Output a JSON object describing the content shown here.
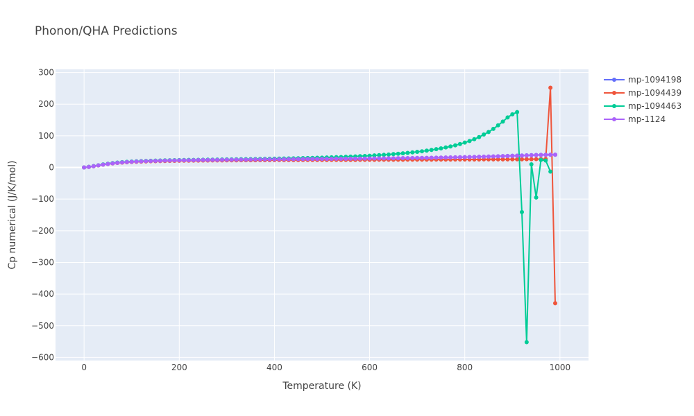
{
  "chart_data": {
    "type": "line",
    "title": "Phonon/QHA Predictions",
    "xlabel": "Temperature (K)",
    "ylabel": "Cp numerical (J/K/mol)",
    "xlim": [
      -60,
      1060
    ],
    "ylim": [
      -610,
      310
    ],
    "xticks": [
      0,
      200,
      400,
      600,
      800,
      1000
    ],
    "yticks": [
      -600,
      -500,
      -400,
      -300,
      -200,
      -100,
      0,
      100,
      200,
      300
    ],
    "xtick_labels": [
      "0",
      "200",
      "400",
      "600",
      "800",
      "1000"
    ],
    "ytick_labels": [
      "−600",
      "−500",
      "−400",
      "−300",
      "−200",
      "−100",
      "0",
      "100",
      "200",
      "300"
    ],
    "grid": true,
    "legend_position": "top-right",
    "x_start": 0,
    "x_step": 10,
    "series": [
      {
        "name": "mp-1094198",
        "color": "#636efa",
        "values": [
          0,
          1.8,
          4.1,
          6.6,
          9.1,
          11.3,
          13.2,
          14.7,
          16.0,
          17.1,
          18.0,
          18.8,
          19.4,
          20.0,
          20.5,
          20.9,
          21.3,
          21.6,
          21.9,
          22.2,
          22.4,
          22.6,
          22.8,
          23.0,
          23.2,
          23.3,
          23.5,
          23.6,
          23.7,
          23.8,
          23.9,
          24.0,
          24.1,
          24.2,
          24.3,
          24.4,
          24.5,
          24.6,
          24.7,
          24.8,
          24.9,
          25.0,
          25.1,
          25.2,
          25.3,
          25.4,
          25.5,
          25.6,
          25.8,
          25.9,
          26.0,
          26.1,
          26.3,
          26.4,
          26.5,
          26.7,
          26.8,
          27.0,
          27.1,
          27.3,
          27.5,
          27.6,
          27.8,
          28.0,
          28.2,
          28.4,
          28.6,
          28.8,
          29.0,
          29.3,
          29.5,
          29.8,
          30.0,
          30.3,
          30.6,
          30.9,
          31.2,
          31.5,
          31.8,
          32.2,
          32.5,
          32.9,
          33.3,
          33.7,
          34.1,
          34.5,
          34.9,
          35.4,
          35.9,
          36.4,
          36.9,
          37.4,
          37.9,
          38.4,
          38.9,
          39.4,
          39.8,
          40.1,
          40.3,
          40.4
        ]
      },
      {
        "name": "mp-1094439",
        "color": "#ef553b",
        "values": [
          0,
          1.7,
          3.9,
          6.3,
          8.7,
          10.9,
          12.7,
          14.2,
          15.4,
          16.4,
          17.2,
          17.9,
          18.5,
          19.0,
          19.4,
          19.8,
          20.1,
          20.4,
          20.7,
          20.9,
          21.1,
          21.3,
          21.5,
          21.6,
          21.8,
          21.9,
          22.0,
          22.1,
          22.2,
          22.3,
          22.4,
          22.5,
          22.6,
          22.7,
          22.8,
          22.8,
          22.9,
          23.0,
          23.0,
          23.1,
          23.2,
          23.2,
          23.3,
          23.3,
          23.4,
          23.4,
          23.5,
          23.5,
          23.6,
          23.6,
          23.7,
          23.7,
          23.8,
          23.8,
          23.9,
          23.9,
          24.0,
          24.0,
          24.1,
          24.1,
          24.2,
          24.2,
          24.3,
          24.3,
          24.4,
          24.4,
          24.5,
          24.5,
          24.6,
          24.6,
          24.7,
          24.7,
          24.8,
          24.8,
          24.9,
          24.9,
          25.0,
          25.0,
          25.1,
          25.1,
          25.2,
          25.2,
          25.3,
          25.3,
          25.4,
          25.4,
          25.5,
          25.5,
          25.6,
          25.6,
          25.7,
          25.8,
          25.9,
          26.0,
          26.1,
          26.2,
          26.3,
          26.5,
          252,
          -429
        ]
      },
      {
        "name": "mp-1094463",
        "color": "#00cc96",
        "values": [
          0,
          1.9,
          4.3,
          6.9,
          9.5,
          11.8,
          13.8,
          15.4,
          16.7,
          17.8,
          18.7,
          19.5,
          20.1,
          20.7,
          21.2,
          21.6,
          22.0,
          22.4,
          22.7,
          23.0,
          23.3,
          23.5,
          23.8,
          24.0,
          24.2,
          24.4,
          24.6,
          24.8,
          25.0,
          25.2,
          25.4,
          25.6,
          25.8,
          26.0,
          26.2,
          26.4,
          26.6,
          26.9,
          27.1,
          27.4,
          27.6,
          27.9,
          28.2,
          28.5,
          28.8,
          29.1,
          29.5,
          29.8,
          30.2,
          30.6,
          31.0,
          31.5,
          32.0,
          32.5,
          33.0,
          33.6,
          34.2,
          34.9,
          35.6,
          36.3,
          37.1,
          38.0,
          38.9,
          39.9,
          40.9,
          42.1,
          43.3,
          44.6,
          46.0,
          47.6,
          49.3,
          51.1,
          53.1,
          55.3,
          57.7,
          60.3,
          63.2,
          66.4,
          70.0,
          74.0,
          78.5,
          83.6,
          89.4,
          96.0,
          104,
          112,
          122,
          133,
          145,
          158,
          168,
          175,
          -141,
          -552,
          10,
          -95,
          24,
          22,
          -13
        ]
      },
      {
        "name": "mp-1124",
        "color": "#ab63fa",
        "values": [
          0,
          1.8,
          4.0,
          6.5,
          8.9,
          11.1,
          13.0,
          14.5,
          15.8,
          16.9,
          17.8,
          18.6,
          19.3,
          19.9,
          20.4,
          20.8,
          21.2,
          21.6,
          21.9,
          22.2,
          22.5,
          22.7,
          22.9,
          23.1,
          23.3,
          23.5,
          23.7,
          23.8,
          24.0,
          24.1,
          24.3,
          24.4,
          24.6,
          24.7,
          24.8,
          25.0,
          25.1,
          25.2,
          25.4,
          25.5,
          25.6,
          25.7,
          25.9,
          26.0,
          26.1,
          26.2,
          26.4,
          26.5,
          26.6,
          26.7,
          26.9,
          27.0,
          27.1,
          27.3,
          27.4,
          27.5,
          27.7,
          27.8,
          28.0,
          28.1,
          28.3,
          28.4,
          28.6,
          28.8,
          28.9,
          29.1,
          29.3,
          29.5,
          29.7,
          29.9,
          30.1,
          30.3,
          30.5,
          30.8,
          31.0,
          31.3,
          31.5,
          31.8,
          32.1,
          32.4,
          32.7,
          33.0,
          33.3,
          33.7,
          34.0,
          34.4,
          34.8,
          35.2,
          35.6,
          36.0,
          36.5,
          36.9,
          37.4,
          37.9,
          38.4,
          38.9,
          39.4,
          39.8,
          40.1,
          40.3
        ]
      }
    ]
  }
}
